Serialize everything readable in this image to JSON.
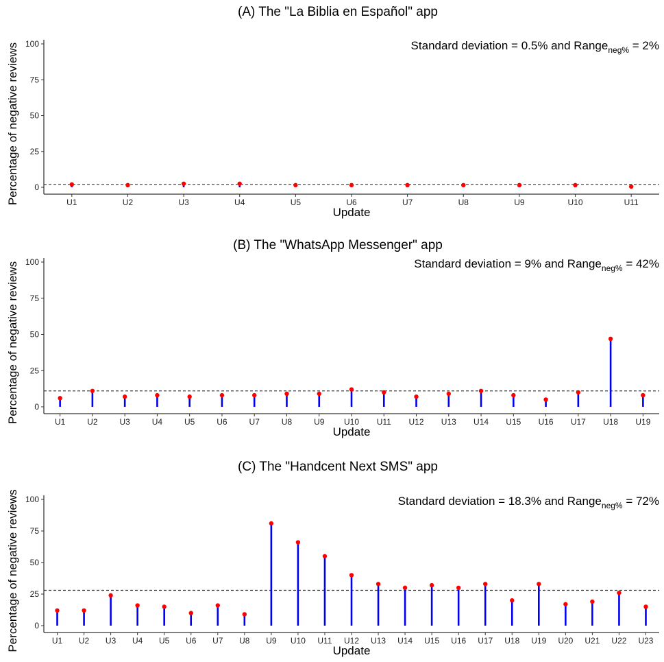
{
  "chart_data": [
    {
      "type": "lollipop",
      "title": "(A) The  \"La Biblia en Español\"  app",
      "xlabel": "Update",
      "ylabel": "Percentage of negative reviews",
      "ylim": [
        0,
        100
      ],
      "yticks": [
        0,
        25,
        50,
        75,
        100
      ],
      "annotation": {
        "prefix": "Standard deviation = 0.5% and Range",
        "subscript": "neg%",
        "suffix": " = 2%"
      },
      "reference_line": 2,
      "categories": [
        "U1",
        "U2",
        "U3",
        "U4",
        "U5",
        "U6",
        "U7",
        "U8",
        "U9",
        "U10",
        "U11"
      ],
      "values": [
        2,
        1.5,
        2.5,
        2.5,
        1.5,
        1.5,
        1.5,
        1.5,
        1.5,
        1.5,
        0.5
      ],
      "colors": {
        "stem": "#0000ee",
        "point": "#ff0000",
        "ref": "#333333"
      }
    },
    {
      "type": "lollipop",
      "title": "(B) The  \"WhatsApp Messenger\"  app",
      "xlabel": "Update",
      "ylabel": "Percentage of negative reviews",
      "ylim": [
        0,
        100
      ],
      "yticks": [
        0,
        25,
        50,
        75,
        100
      ],
      "annotation": {
        "prefix": "Standard deviation = 9% and Range",
        "subscript": "neg%",
        "suffix": " = 42%"
      },
      "reference_line": 11,
      "categories": [
        "U1",
        "U2",
        "U3",
        "U4",
        "U5",
        "U6",
        "U7",
        "U8",
        "U9",
        "U10",
        "U11",
        "U12",
        "U13",
        "U14",
        "U15",
        "U16",
        "U17",
        "U18",
        "U19"
      ],
      "values": [
        6,
        11,
        7,
        8,
        7,
        8,
        8,
        9,
        9,
        12,
        10,
        7,
        9,
        11,
        8,
        5,
        10,
        47,
        8
      ],
      "colors": {
        "stem": "#0000ee",
        "point": "#ff0000",
        "ref": "#333333"
      }
    },
    {
      "type": "lollipop",
      "title": "(C) The  \"Handcent Next SMS\"  app",
      "xlabel": "Update",
      "ylabel": "Percentage of negative reviews",
      "ylim": [
        0,
        100
      ],
      "yticks": [
        0,
        25,
        50,
        75,
        100
      ],
      "annotation": {
        "prefix": "Standard deviation = 18.3% and Range",
        "subscript": "neg%",
        "suffix": " = 72%"
      },
      "reference_line": 28,
      "categories": [
        "U1",
        "U2",
        "U3",
        "U4",
        "U5",
        "U6",
        "U7",
        "U8",
        "U9",
        "U10",
        "U11",
        "U12",
        "U13",
        "U14",
        "U15",
        "U16",
        "U17",
        "U18",
        "U19",
        "U20",
        "U21",
        "U22",
        "U23"
      ],
      "values": [
        12,
        12,
        24,
        16,
        15,
        10,
        16,
        9,
        81,
        66,
        55,
        40,
        33,
        30,
        32,
        30,
        33,
        20,
        33,
        17,
        19,
        26,
        15
      ],
      "colors": {
        "stem": "#0000ee",
        "point": "#ff0000",
        "ref": "#333333"
      }
    }
  ]
}
